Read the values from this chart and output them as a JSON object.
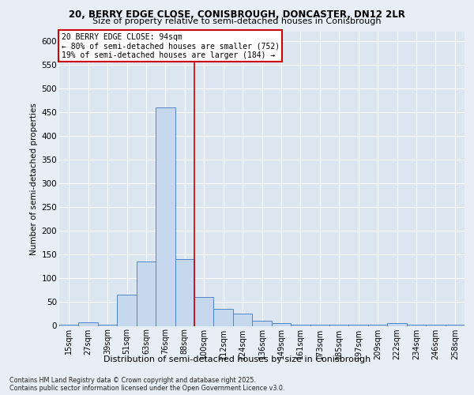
{
  "title_line1": "20, BERRY EDGE CLOSE, CONISBROUGH, DONCASTER, DN12 2LR",
  "title_line2": "Size of property relative to semi-detached houses in Conisbrough",
  "categories": [
    "15sqm",
    "27sqm",
    "39sqm",
    "51sqm",
    "63sqm",
    "76sqm",
    "88sqm",
    "100sqm",
    "112sqm",
    "124sqm",
    "136sqm",
    "149sqm",
    "161sqm",
    "173sqm",
    "185sqm",
    "197sqm",
    "209sqm",
    "222sqm",
    "234sqm",
    "246sqm",
    "258sqm"
  ],
  "values": [
    2,
    7,
    2,
    65,
    135,
    460,
    140,
    60,
    35,
    25,
    10,
    5,
    2,
    2,
    2,
    2,
    2,
    5,
    2,
    2,
    2
  ],
  "bar_color": "#c5d8ed",
  "bar_edge_color": "#4e86c8",
  "ylabel": "Number of semi-detached properties",
  "xlabel": "Distribution of semi-detached houses by size in Conisbrough",
  "property_label": "20 BERRY EDGE CLOSE: 94sqm",
  "smaller_text": "← 80% of semi-detached houses are smaller (752)",
  "larger_text": "19% of semi-detached houses are larger (184) →",
  "vline_color": "#cc0000",
  "annotation_border_color": "#cc0000",
  "footer_line1": "Contains HM Land Registry data © Crown copyright and database right 2025.",
  "footer_line2": "Contains public sector information licensed under the Open Government Licence v3.0.",
  "bg_color": "#e8eef5",
  "plot_bg_color": "#dce6f0",
  "ylim": [
    0,
    620
  ],
  "yticks": [
    0,
    50,
    100,
    150,
    200,
    250,
    300,
    350,
    400,
    450,
    500,
    550,
    600
  ]
}
